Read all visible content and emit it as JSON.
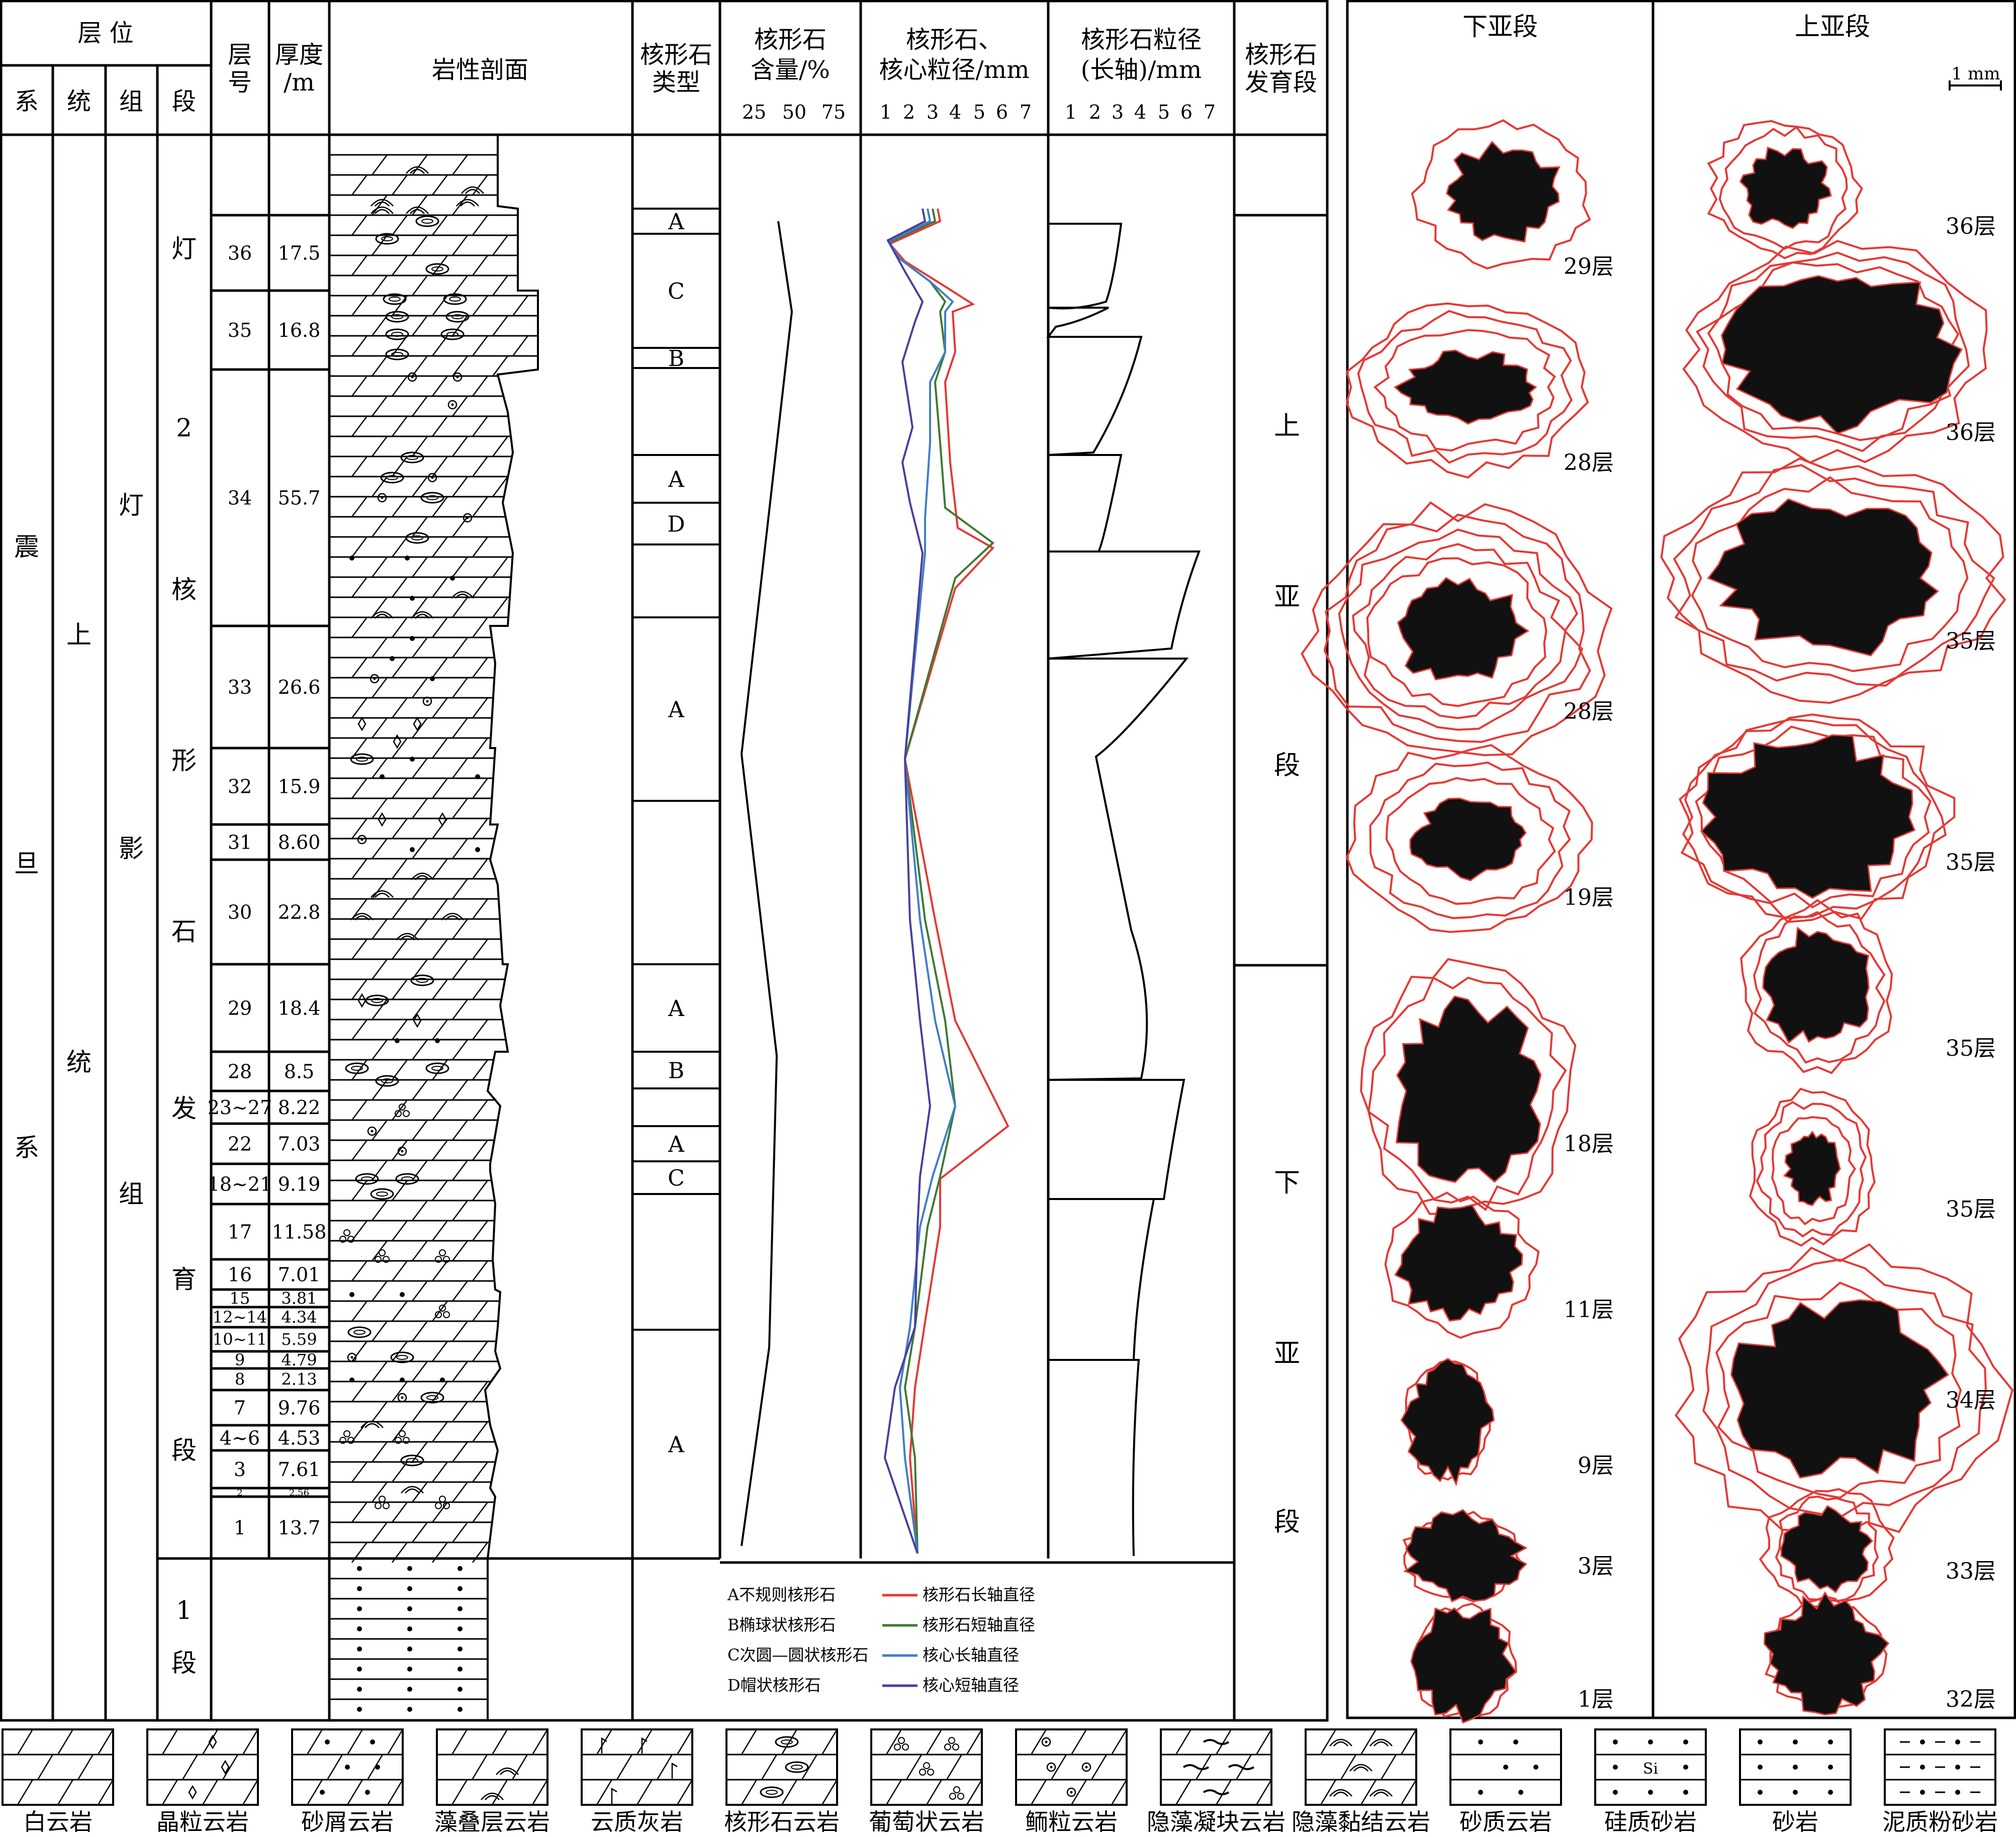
{
  "header": {
    "stratigraphy": "层 位",
    "system": "系",
    "series": "统",
    "formation": "组",
    "member": "段",
    "layer_no": [
      "层",
      "号"
    ],
    "thickness": [
      "厚度",
      "/m"
    ],
    "profile": "岩性剖面",
    "oncoid_type": [
      "核形石",
      "类型"
    ],
    "oncoid_content": [
      "核形石",
      "含量/%"
    ],
    "content_ticks": [
      "25",
      "50",
      "75"
    ],
    "grain_size": [
      "核形石、",
      "核心粒径/mm"
    ],
    "grain_ticks": [
      "1",
      "2",
      "3",
      "4",
      "5",
      "6",
      "7"
    ],
    "long_axis": [
      "核形石粒径",
      "(长轴)/mm"
    ],
    "long_ticks": [
      "1",
      "2",
      "3",
      "4",
      "5",
      "6",
      "7"
    ],
    "stage": [
      "核形石",
      "发育段"
    ]
  },
  "stratigraphy": {
    "system": [
      "震",
      "旦",
      "系"
    ],
    "series": [
      "上",
      "统"
    ],
    "formation": [
      "灯",
      "影",
      "组"
    ],
    "member2": [
      "灯",
      "2",
      "核",
      "形",
      "石",
      "发",
      "育",
      "段"
    ],
    "member1": [
      "1",
      "段"
    ]
  },
  "layers": [
    {
      "no": "36",
      "thickness": "17.5"
    },
    {
      "no": "35",
      "thickness": "16.8"
    },
    {
      "no": "34",
      "thickness": "55.7"
    },
    {
      "no": "33",
      "thickness": "26.6"
    },
    {
      "no": "32",
      "thickness": "15.9"
    },
    {
      "no": "31",
      "thickness": "8.60"
    },
    {
      "no": "30",
      "thickness": "22.8"
    },
    {
      "no": "29",
      "thickness": "18.4"
    },
    {
      "no": "28",
      "thickness": "8.5"
    },
    {
      "no": "23~27",
      "thickness": "8.22"
    },
    {
      "no": "22",
      "thickness": "7.03"
    },
    {
      "no": "18~21",
      "thickness": "9.19"
    },
    {
      "no": "17",
      "thickness": "11.58"
    },
    {
      "no": "16",
      "thickness": "7.01"
    },
    {
      "no": "15",
      "thickness": "3.81"
    },
    {
      "no": "12~14",
      "thickness": "4.34"
    },
    {
      "no": "10~11",
      "thickness": "5.59"
    },
    {
      "no": "9",
      "thickness": "4.79"
    },
    {
      "no": "8",
      "thickness": "2.13"
    },
    {
      "no": "7",
      "thickness": "9.76"
    },
    {
      "no": "4~6",
      "thickness": "4.53"
    },
    {
      "no": "3",
      "thickness": "7.61"
    },
    {
      "no": "2",
      "thickness": "2.56"
    },
    {
      "no": "1",
      "thickness": "13.7"
    }
  ],
  "oncoid_types": [
    "A",
    "C",
    "B",
    "A",
    "D",
    "A",
    "A",
    "B",
    "A",
    "C",
    "A"
  ],
  "stages": {
    "upper": [
      "上",
      "亚",
      "段"
    ],
    "lower": [
      "下",
      "亚",
      "段"
    ]
  },
  "type_legend": [
    "A不规则核形石",
    "B椭球状核形石",
    "C次圆—圆状核形石",
    "D帽状核形石"
  ],
  "line_legend": [
    {
      "label": "核形石长轴直径",
      "color": "#e53935"
    },
    {
      "label": "核形石短轴直径",
      "color": "#3e7a33"
    },
    {
      "label": "核心长轴直径",
      "color": "#3f7fc8"
    },
    {
      "label": "核心短轴直径",
      "color": "#4b3e9e"
    }
  ],
  "specimens": {
    "lower_title": "下亚段",
    "upper_title": "上亚段",
    "scale_bar": "1 mm",
    "lower_labels": [
      "29层",
      "28层",
      "28层",
      "19层",
      "18层",
      "11层",
      "9层",
      "3层",
      "1层"
    ],
    "upper_labels": [
      "36层",
      "36层",
      "35层",
      "35层",
      "35层",
      "35层",
      "34层",
      "33层",
      "32层"
    ]
  },
  "lithology_legend": [
    "白云岩",
    "晶粒云岩",
    "砂屑云岩",
    "藻叠层云岩",
    "云质灰岩",
    "核形石云岩",
    "葡萄状云岩",
    "鲕粒云岩",
    "隐藻凝块云岩",
    "隐藻黏结云岩",
    "砂质云岩",
    "硅质砂岩",
    "砂岩",
    "泥质粉砂岩"
  ],
  "si_label": "Si",
  "chart_data": {
    "type": "line",
    "title": "",
    "series": [
      {
        "name": "核形石长轴直径",
        "values": []
      },
      {
        "name": "核形石短轴直径",
        "values": []
      },
      {
        "name": "核心长轴直径",
        "values": []
      },
      {
        "name": "核心短轴直径",
        "values": []
      }
    ]
  }
}
